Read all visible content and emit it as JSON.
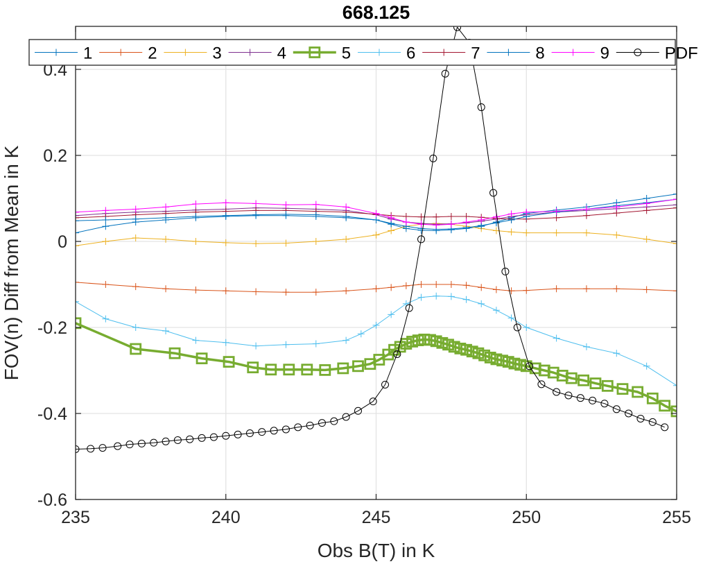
{
  "chart_data": {
    "type": "line",
    "title": "668.125",
    "xlabel": "Obs B(T) in K",
    "ylabel": "FOV(n) Diff from Mean in K",
    "xlim": [
      235,
      255
    ],
    "ylim": [
      -0.6,
      0.5
    ],
    "xticks": [
      235,
      240,
      245,
      250,
      255
    ],
    "yticks": [
      -0.6,
      -0.4,
      -0.2,
      0,
      0.2,
      0.4
    ],
    "xtick_labels": [
      "235",
      "240",
      "245",
      "250",
      "255"
    ],
    "ytick_labels": [
      "-0.6",
      "-0.4",
      "-0.2",
      "0",
      "0.2",
      "0.4"
    ],
    "grid": true,
    "legend_position": "top",
    "series": [
      {
        "name": "1",
        "color": "#0072BD",
        "marker": "plus",
        "width": 1,
        "x": [
          235,
          236,
          237,
          238,
          239,
          240,
          241,
          242,
          243,
          244,
          245,
          245.5,
          246,
          246.5,
          247,
          247.5,
          248,
          248.5,
          249,
          249.5,
          250,
          251,
          252,
          253,
          254,
          255
        ],
        "y": [
          0.02,
          0.035,
          0.045,
          0.05,
          0.055,
          0.058,
          0.06,
          0.06,
          0.058,
          0.055,
          0.05,
          0.04,
          0.03,
          0.026,
          0.025,
          0.027,
          0.03,
          0.035,
          0.045,
          0.055,
          0.065,
          0.073,
          0.08,
          0.09,
          0.1,
          0.11
        ]
      },
      {
        "name": "2",
        "color": "#D95319",
        "marker": "plus",
        "width": 1,
        "x": [
          235,
          236,
          237,
          238,
          239,
          240,
          241,
          242,
          243,
          244,
          245,
          245.5,
          246,
          246.5,
          247,
          247.5,
          248,
          248.5,
          249,
          249.5,
          250,
          251,
          252,
          253,
          254,
          255
        ],
        "y": [
          -0.095,
          -0.1,
          -0.105,
          -0.11,
          -0.113,
          -0.115,
          -0.117,
          -0.118,
          -0.118,
          -0.115,
          -0.11,
          -0.107,
          -0.103,
          -0.1,
          -0.1,
          -0.1,
          -0.102,
          -0.107,
          -0.112,
          -0.115,
          -0.114,
          -0.11,
          -0.11,
          -0.11,
          -0.112,
          -0.115
        ]
      },
      {
        "name": "3",
        "color": "#EDB120",
        "marker": "plus",
        "width": 1,
        "x": [
          235,
          236,
          237,
          238,
          239,
          240,
          241,
          242,
          243,
          244,
          245,
          245.5,
          246,
          246.5,
          247,
          247.5,
          248,
          248.5,
          249,
          249.5,
          250,
          251,
          252,
          253,
          254,
          255
        ],
        "y": [
          -0.01,
          0.0,
          0.008,
          0.005,
          0.0,
          -0.003,
          -0.005,
          -0.004,
          0.0,
          0.005,
          0.015,
          0.025,
          0.035,
          0.04,
          0.042,
          0.04,
          0.035,
          0.03,
          0.025,
          0.022,
          0.02,
          0.02,
          0.02,
          0.015,
          0.005,
          -0.005
        ]
      },
      {
        "name": "4",
        "color": "#7E2F8E",
        "marker": "plus",
        "width": 1,
        "x": [
          235,
          236,
          237,
          238,
          239,
          240,
          241,
          242,
          243,
          244,
          245,
          245.5,
          246,
          246.5,
          247,
          247.5,
          248,
          248.5,
          249,
          249.5,
          250,
          251,
          252,
          253,
          254,
          255
        ],
        "y": [
          0.06,
          0.065,
          0.068,
          0.07,
          0.073,
          0.075,
          0.078,
          0.077,
          0.075,
          0.072,
          0.062,
          0.052,
          0.045,
          0.042,
          0.04,
          0.041,
          0.043,
          0.047,
          0.052,
          0.058,
          0.062,
          0.068,
          0.072,
          0.076,
          0.08,
          0.085
        ]
      },
      {
        "name": "5",
        "color": "#77AC30",
        "marker": "square",
        "width": 3.5,
        "x": [
          235,
          237,
          238.3,
          239.2,
          240.1,
          240.9,
          241.5,
          242.1,
          242.7,
          243.3,
          243.9,
          244.4,
          244.8,
          245.1,
          245.4,
          245.6,
          245.8,
          246,
          246.2,
          246.4,
          246.6,
          246.8,
          247,
          247.2,
          247.4,
          247.6,
          247.8,
          248,
          248.2,
          248.4,
          248.6,
          248.8,
          249,
          249.2,
          249.4,
          249.6,
          249.8,
          250,
          250.3,
          250.6,
          250.9,
          251.2,
          251.5,
          251.9,
          252.3,
          252.7,
          253.2,
          253.7,
          254.2,
          254.6,
          255
        ],
        "y": [
          -0.19,
          -0.25,
          -0.26,
          -0.272,
          -0.28,
          -0.293,
          -0.298,
          -0.298,
          -0.298,
          -0.299,
          -0.295,
          -0.29,
          -0.285,
          -0.275,
          -0.263,
          -0.252,
          -0.245,
          -0.238,
          -0.233,
          -0.23,
          -0.228,
          -0.229,
          -0.232,
          -0.236,
          -0.24,
          -0.245,
          -0.249,
          -0.252,
          -0.256,
          -0.26,
          -0.265,
          -0.27,
          -0.274,
          -0.277,
          -0.28,
          -0.284,
          -0.287,
          -0.29,
          -0.295,
          -0.3,
          -0.305,
          -0.312,
          -0.318,
          -0.323,
          -0.33,
          -0.336,
          -0.343,
          -0.35,
          -0.365,
          -0.382,
          -0.395
        ]
      },
      {
        "name": "6",
        "color": "#4DBEEE",
        "marker": "plus",
        "width": 1,
        "x": [
          235,
          236,
          237,
          238,
          239,
          240,
          241,
          242,
          243,
          244,
          244.5,
          245,
          245.5,
          246,
          246.5,
          247,
          247.5,
          248,
          248.5,
          249,
          249.5,
          250,
          251,
          252,
          253,
          254,
          255
        ],
        "y": [
          -0.14,
          -0.18,
          -0.2,
          -0.208,
          -0.23,
          -0.235,
          -0.243,
          -0.24,
          -0.238,
          -0.23,
          -0.215,
          -0.195,
          -0.17,
          -0.145,
          -0.13,
          -0.127,
          -0.128,
          -0.135,
          -0.145,
          -0.16,
          -0.178,
          -0.2,
          -0.225,
          -0.245,
          -0.26,
          -0.29,
          -0.335
        ]
      },
      {
        "name": "7",
        "color": "#A2142F",
        "marker": "plus",
        "width": 1,
        "x": [
          235,
          236,
          237,
          238,
          239,
          240,
          241,
          242,
          243,
          244,
          245,
          245.5,
          246,
          246.5,
          247,
          247.5,
          248,
          248.5,
          249,
          249.5,
          250,
          251,
          252,
          253,
          254,
          255
        ],
        "y": [
          0.055,
          0.058,
          0.062,
          0.065,
          0.068,
          0.07,
          0.072,
          0.072,
          0.07,
          0.068,
          0.063,
          0.06,
          0.058,
          0.057,
          0.057,
          0.058,
          0.058,
          0.056,
          0.053,
          0.052,
          0.052,
          0.055,
          0.06,
          0.066,
          0.072,
          0.078
        ]
      },
      {
        "name": "8",
        "color": "#0072BD",
        "marker": "plus",
        "width": 1,
        "x": [
          235,
          236,
          237,
          238,
          239,
          240,
          241,
          242,
          243,
          244,
          245,
          245.5,
          246,
          246.5,
          247,
          247.5,
          248,
          248.5,
          249,
          249.5,
          250,
          251,
          252,
          253,
          254,
          255
        ],
        "y": [
          0.048,
          0.05,
          0.052,
          0.055,
          0.058,
          0.06,
          0.062,
          0.063,
          0.062,
          0.058,
          0.05,
          0.042,
          0.035,
          0.03,
          0.028,
          0.029,
          0.032,
          0.037,
          0.043,
          0.05,
          0.058,
          0.068,
          0.075,
          0.083,
          0.09,
          0.098
        ]
      },
      {
        "name": "9",
        "color": "#FF00FF",
        "marker": "plus",
        "width": 1,
        "x": [
          235,
          236,
          237,
          238,
          239,
          240,
          241,
          242,
          243,
          244,
          245,
          245.5,
          246,
          246.5,
          247,
          247.5,
          248,
          248.5,
          249,
          249.5,
          250,
          251,
          252,
          253,
          254,
          255
        ],
        "y": [
          0.068,
          0.072,
          0.075,
          0.08,
          0.087,
          0.09,
          0.088,
          0.085,
          0.086,
          0.08,
          0.065,
          0.055,
          0.045,
          0.04,
          0.038,
          0.04,
          0.045,
          0.05,
          0.057,
          0.064,
          0.068,
          0.07,
          0.075,
          0.08,
          0.088,
          0.098
        ]
      },
      {
        "name": "PDF",
        "color": "#000000",
        "marker": "circle",
        "width": 1,
        "x": [
          235,
          235.5,
          235.9,
          236.4,
          236.8,
          237.2,
          237.6,
          238,
          238.4,
          238.8,
          239.2,
          239.6,
          240,
          240.4,
          240.8,
          241.2,
          241.6,
          242,
          242.4,
          242.8,
          243.2,
          243.6,
          244,
          244.4,
          244.9,
          245.3,
          245.7,
          246.1,
          246.5,
          246.9,
          247.3,
          247.7,
          248.1,
          248.5,
          248.9,
          249.3,
          249.7,
          250.1,
          250.5,
          251,
          251.4,
          251.8,
          252.2,
          252.6,
          253,
          253.4,
          253.8,
          254.2,
          254.6
        ],
        "y": [
          -0.483,
          -0.482,
          -0.48,
          -0.476,
          -0.472,
          -0.47,
          -0.468,
          -0.465,
          -0.462,
          -0.46,
          -0.457,
          -0.455,
          -0.452,
          -0.449,
          -0.446,
          -0.443,
          -0.44,
          -0.437,
          -0.432,
          -0.428,
          -0.422,
          -0.418,
          -0.408,
          -0.394,
          -0.372,
          -0.333,
          -0.262,
          -0.155,
          0.005,
          0.193,
          0.39,
          0.498,
          0.462,
          0.312,
          0.113,
          -0.07,
          -0.2,
          -0.29,
          -0.332,
          -0.35,
          -0.358,
          -0.364,
          -0.37,
          -0.377,
          -0.39,
          -0.4,
          -0.412,
          -0.42,
          -0.432
        ]
      }
    ]
  }
}
